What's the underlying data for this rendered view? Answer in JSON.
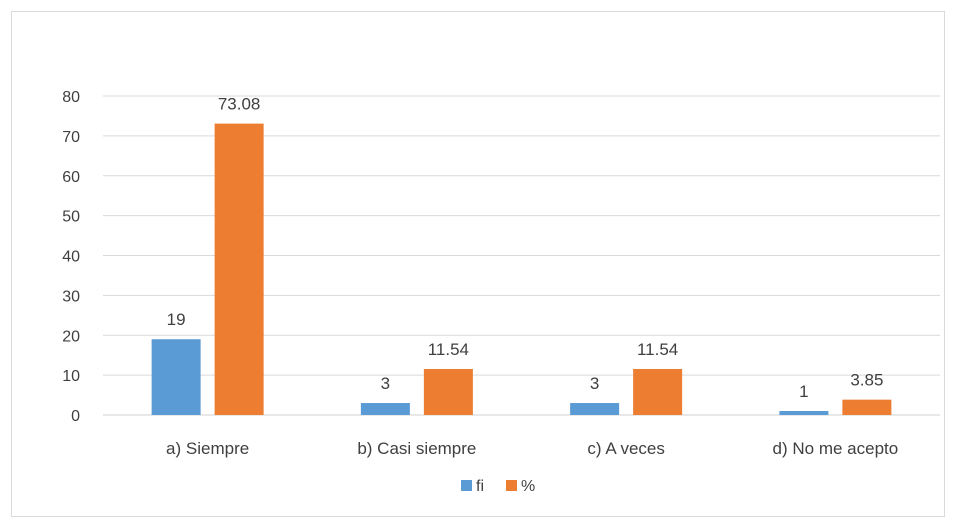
{
  "chart_data": {
    "type": "bar",
    "categories": [
      "a) Siempre",
      "b) Casi siempre",
      "c) A veces",
      "d) No me acepto"
    ],
    "series": [
      {
        "name": "fi",
        "values": [
          19,
          3,
          3,
          1
        ],
        "labels": [
          "19",
          "3",
          "3",
          "1"
        ],
        "color": "#5b9bd5"
      },
      {
        "name": "%",
        "values": [
          73.08,
          11.54,
          11.54,
          3.85
        ],
        "labels": [
          "73.08",
          "11.54",
          "11.54",
          "3.85"
        ],
        "color": "#ed7d31"
      }
    ],
    "ylim": [
      0,
      80
    ],
    "yticks": [
      0,
      10,
      20,
      30,
      40,
      50,
      60,
      70,
      80
    ],
    "grid": true,
    "legend": "bottom",
    "title": "",
    "xlabel": "",
    "ylabel": ""
  }
}
